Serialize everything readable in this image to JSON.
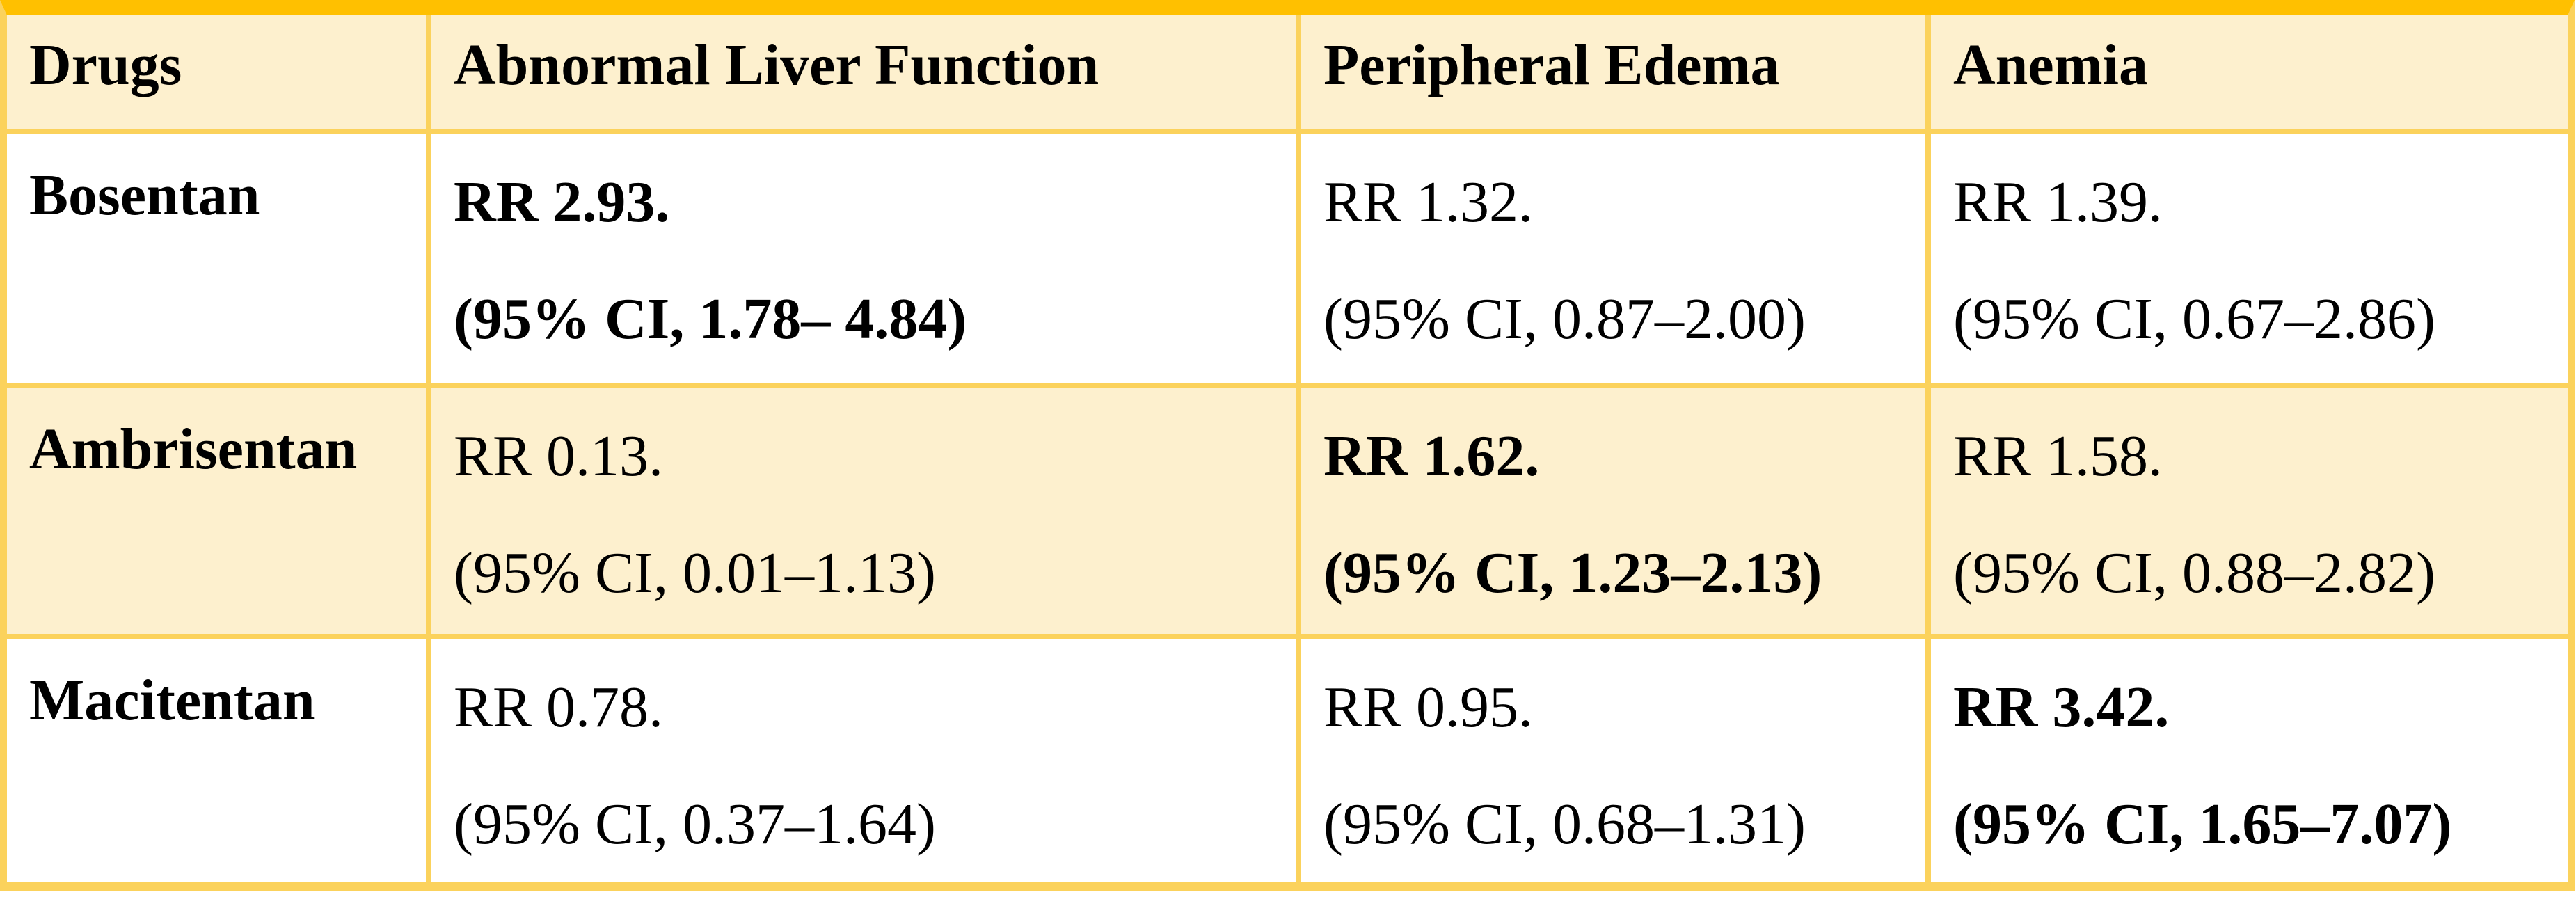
{
  "table": {
    "columns": [
      "Drugs",
      "Abnormal Liver Function",
      "Peripheral Edema",
      "Anemia"
    ],
    "rows": [
      {
        "drug": "Bosentan",
        "cells": [
          {
            "rr": "RR 2.93.",
            "ci": "(95% CI, 1.78– 4.84)",
            "bold": true
          },
          {
            "rr": "RR 1.32.",
            "ci": "(95% CI, 0.87–2.00)",
            "bold": false
          },
          {
            "rr": "RR 1.39.",
            "ci": "(95% CI, 0.67–2.86)",
            "bold": false
          }
        ]
      },
      {
        "drug": "Ambrisentan",
        "cells": [
          {
            "rr": "RR 0.13.",
            "ci": "(95% CI, 0.01–1.13)",
            "bold": false
          },
          {
            "rr": "RR 1.62.",
            "ci": "(95% CI, 1.23–2.13)",
            "bold": true
          },
          {
            "rr": "RR 1.58.",
            "ci": "(95% CI, 0.88–2.82)",
            "bold": false
          }
        ]
      },
      {
        "drug": "Macitentan",
        "cells": [
          {
            "rr": "RR 0.78.",
            "ci": "(95% CI, 0.37–1.64)",
            "bold": false
          },
          {
            "rr": "RR 0.95.",
            "ci": "(95% CI, 0.68–1.31)",
            "bold": false
          },
          {
            "rr": "RR 3.42.",
            "ci": "(95% CI, 1.65–7.07)",
            "bold": true
          }
        ]
      }
    ],
    "colors": {
      "top_rule": "#FFC000",
      "grid_lines": "#FBD25C",
      "band_background": "#FDF0CE",
      "row_background": "#FFFFFF",
      "text": "#000000"
    }
  }
}
